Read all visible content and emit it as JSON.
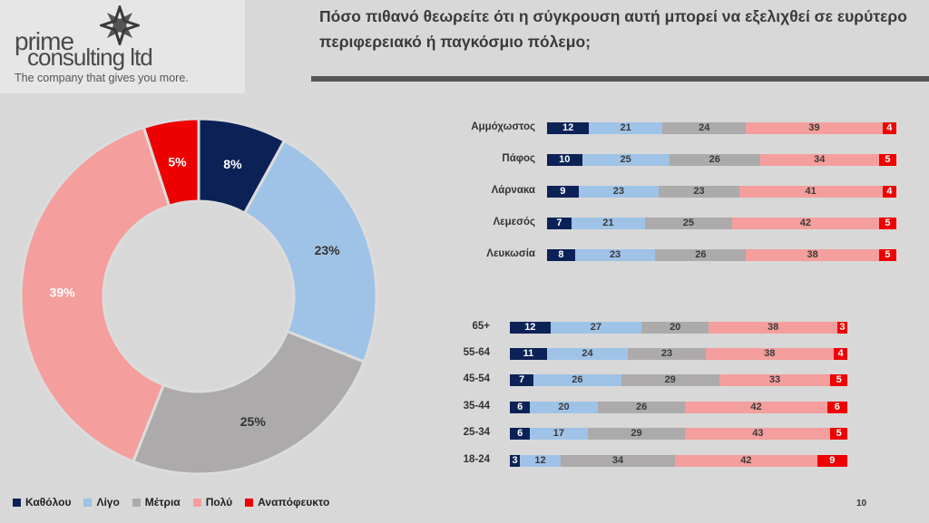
{
  "logo": {
    "line1": "prime",
    "line2": "consulting ltd",
    "tagline": "The company that gives you more."
  },
  "title": "Πόσο πιθανό θεωρείτε ότι η σύγκρουση αυτή μπορεί να εξελιχθεί σε ευρύτερο περιφερειακό ή παγκόσμιο πόλεμο;",
  "page_number": "10",
  "colors": {
    "Καθόλου": "#0c2257",
    "Λίγο": "#9fc3e7",
    "Μέτρια": "#acaaaa",
    "Πολύ": "#f49e9d",
    "Αναπόφευκτο": "#ee0000"
  },
  "legend": [
    "Καθόλου",
    "Λίγο",
    "Μέτρια",
    "Πολύ",
    "Αναπόφευκτο"
  ],
  "chart_data": [
    {
      "type": "pie",
      "variant": "donut",
      "categories": [
        "Καθόλου",
        "Λίγο",
        "Μέτρια",
        "Πολύ",
        "Αναπόφευκτο"
      ],
      "values": [
        8,
        23,
        25,
        39,
        5
      ],
      "labels": [
        "8%",
        "23%",
        "25%",
        "39%",
        "5%"
      ]
    },
    {
      "type": "bar",
      "orientation": "horizontal",
      "stacked": true,
      "categories": [
        "Αμμόχωστος",
        "Πάφος",
        "Λάρνακα",
        "Λεμεσός",
        "Λευκωσία"
      ],
      "series": [
        {
          "name": "Καθόλου",
          "values": [
            12,
            10,
            9,
            7,
            8
          ]
        },
        {
          "name": "Λίγο",
          "values": [
            21,
            25,
            23,
            21,
            23
          ]
        },
        {
          "name": "Μέτρια",
          "values": [
            24,
            26,
            23,
            25,
            26
          ]
        },
        {
          "name": "Πολύ",
          "values": [
            39,
            34,
            41,
            42,
            38
          ]
        },
        {
          "name": "Αναπόφευκτο",
          "values": [
            4,
            5,
            4,
            5,
            5
          ]
        }
      ]
    },
    {
      "type": "bar",
      "orientation": "horizontal",
      "stacked": true,
      "categories": [
        "65+",
        "55-64",
        "45-54",
        "35-44",
        "25-34",
        "18-24"
      ],
      "series": [
        {
          "name": "Καθόλου",
          "values": [
            12,
            11,
            7,
            6,
            6,
            3
          ]
        },
        {
          "name": "Λίγο",
          "values": [
            27,
            24,
            26,
            20,
            17,
            12
          ]
        },
        {
          "name": "Μέτρια",
          "values": [
            20,
            23,
            29,
            26,
            29,
            34
          ]
        },
        {
          "name": "Πολύ",
          "values": [
            38,
            38,
            33,
            42,
            43,
            42
          ]
        },
        {
          "name": "Αναπόφευκτο",
          "values": [
            3,
            4,
            5,
            6,
            5,
            9
          ]
        }
      ]
    }
  ]
}
